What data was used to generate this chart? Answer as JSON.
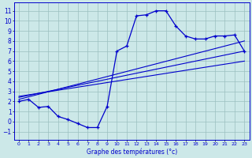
{
  "xlabel": "Graphe des températures (°c)",
  "background_color": "#cce8e8",
  "grid_color": "#9bbfbf",
  "line_color": "#0000cc",
  "xlim": [
    -0.5,
    23.5
  ],
  "ylim": [
    -1.8,
    11.8
  ],
  "xticks": [
    0,
    1,
    2,
    3,
    4,
    5,
    6,
    7,
    8,
    9,
    10,
    11,
    12,
    13,
    14,
    15,
    16,
    17,
    18,
    19,
    20,
    21,
    22,
    23
  ],
  "yticks": [
    -1,
    0,
    1,
    2,
    3,
    4,
    5,
    6,
    7,
    8,
    9,
    10,
    11
  ],
  "main_curve_x": [
    0,
    1,
    2,
    3,
    4,
    5,
    6,
    7,
    8,
    9,
    10,
    11,
    12,
    13,
    14,
    15,
    16,
    17,
    18,
    19,
    20,
    21,
    22,
    23
  ],
  "main_curve_y": [
    2.0,
    2.2,
    1.4,
    1.5,
    0.5,
    0.2,
    -0.2,
    -0.6,
    -0.6,
    1.5,
    7.0,
    7.5,
    10.5,
    10.6,
    11.0,
    11.0,
    9.5,
    8.5,
    8.2,
    8.2,
    8.5,
    8.5,
    8.6,
    7.0
  ],
  "reg_line1_x": [
    0,
    23
  ],
  "reg_line1_y": [
    2.2,
    8.0
  ],
  "reg_line2_x": [
    0,
    23
  ],
  "reg_line2_y": [
    2.4,
    7.0
  ],
  "reg_line3_x": [
    0,
    23
  ],
  "reg_line3_y": [
    2.5,
    6.0
  ]
}
